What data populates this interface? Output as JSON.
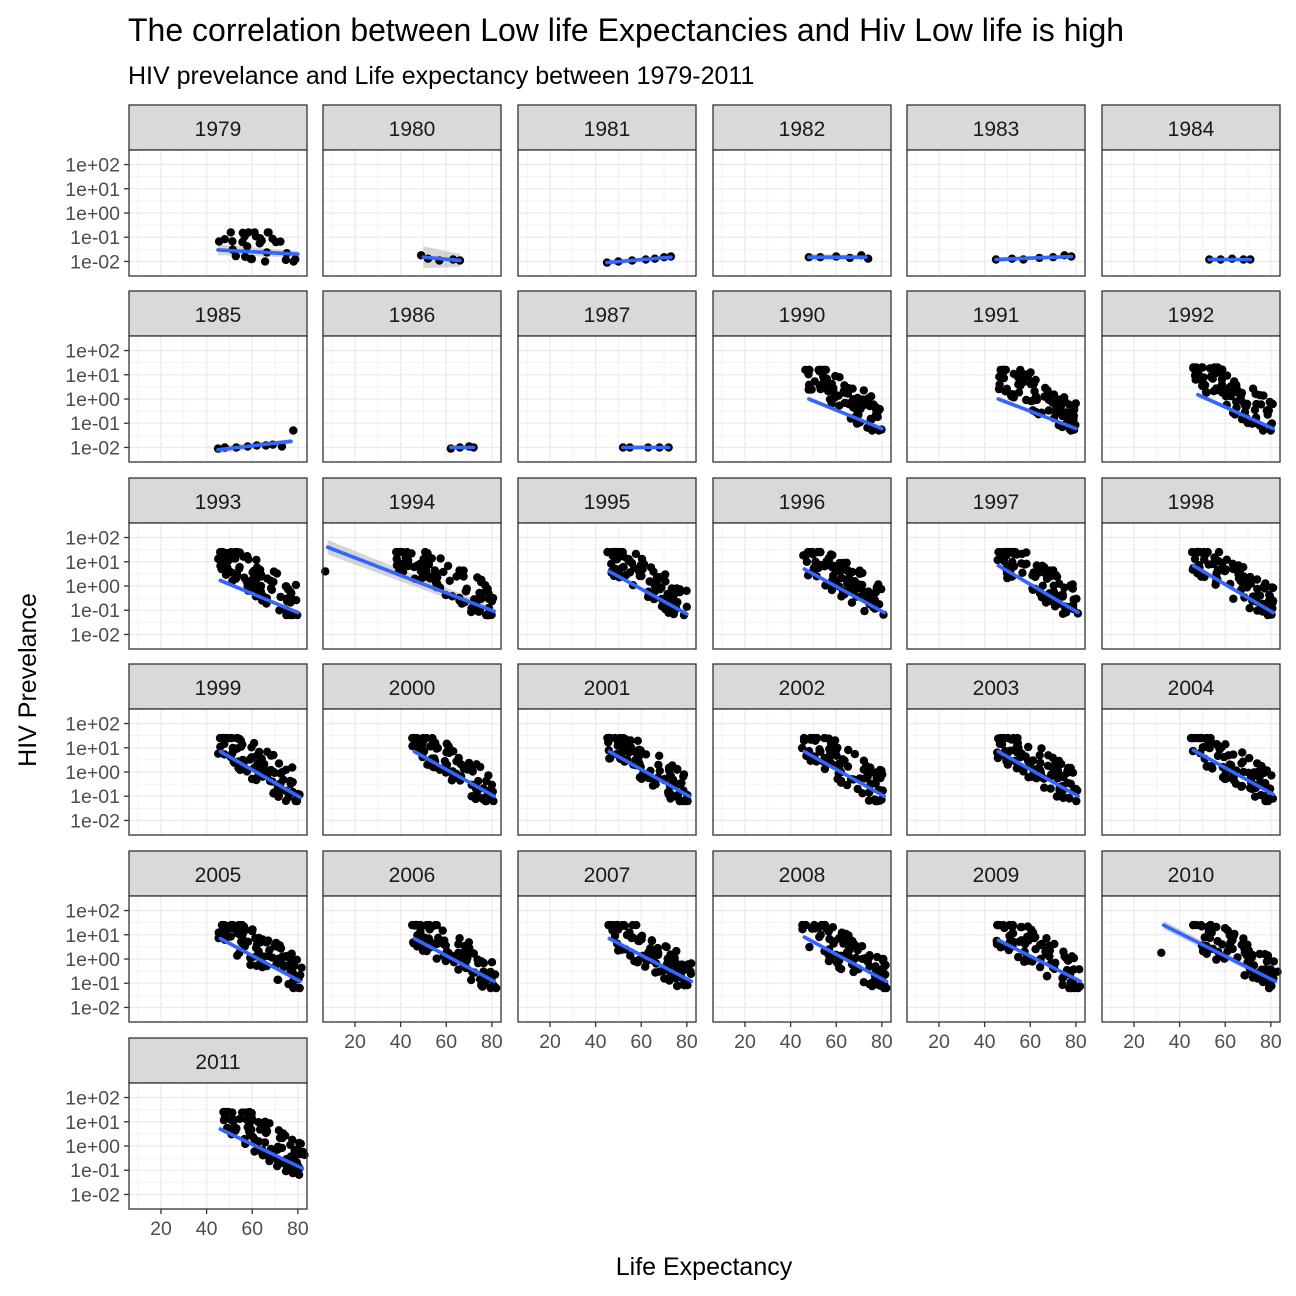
{
  "chart_data": {
    "type": "scatter",
    "title": "The correlation between Low life Expectancies and Hiv Low life is high",
    "subtitle": "HIV prevelance and Life expectancy between 1979-2011",
    "xlabel": "Life Expectancy",
    "ylabel": "HIV Prevelance",
    "xlim": [
      6,
      84
    ],
    "ylim_log10": [
      -2.6,
      2.6
    ],
    "y_scale": "log10",
    "x_ticks": [
      20,
      40,
      60,
      80
    ],
    "y_ticks": [
      0.01,
      0.1,
      1,
      10,
      100
    ],
    "y_tick_labels": [
      "1e-02",
      "1e-01",
      "1e+00",
      "1e+01",
      "1e+02"
    ],
    "grid": true,
    "point_color": "#000000",
    "fit_color": "#3366ff",
    "ribbon_color": "#999999",
    "strip_fill": "#d9d9d9",
    "panels": [
      {
        "year": "1979",
        "fit": [
          [
            45,
            0.03
          ],
          [
            80,
            0.02
          ]
        ],
        "ribbon": 0.22,
        "cloud": [
          45,
          80,
          -2,
          -0.8,
          30
        ]
      },
      {
        "year": "1980",
        "fit": [
          [
            50,
            0.015
          ],
          [
            66,
            0.011
          ]
        ],
        "ribbon": 0.45,
        "points": [
          [
            49,
            0.018
          ],
          [
            52,
            0.013
          ],
          [
            57,
            0.011
          ],
          [
            63,
            0.012
          ],
          [
            66,
            0.011
          ]
        ]
      },
      {
        "year": "1981",
        "fit": [
          [
            45,
            0.009
          ],
          [
            73,
            0.015
          ]
        ],
        "ribbon": 0.12,
        "points": [
          [
            45,
            0.009
          ],
          [
            50,
            0.01
          ],
          [
            56,
            0.011
          ],
          [
            62,
            0.012
          ],
          [
            66,
            0.013
          ],
          [
            70,
            0.015
          ],
          [
            73,
            0.016
          ]
        ]
      },
      {
        "year": "1982",
        "fit": [
          [
            48,
            0.015
          ],
          [
            73,
            0.015
          ]
        ],
        "ribbon": 0.14,
        "points": [
          [
            48,
            0.015
          ],
          [
            53,
            0.015
          ],
          [
            60,
            0.016
          ],
          [
            66,
            0.014
          ],
          [
            71,
            0.018
          ],
          [
            74,
            0.013
          ]
        ]
      },
      {
        "year": "1983",
        "fit": [
          [
            45,
            0.012
          ],
          [
            78,
            0.016
          ]
        ],
        "ribbon": 0.1,
        "points": [
          [
            45,
            0.012
          ],
          [
            52,
            0.013
          ],
          [
            57,
            0.012
          ],
          [
            64,
            0.014
          ],
          [
            70,
            0.015
          ],
          [
            75,
            0.018
          ],
          [
            78,
            0.016
          ]
        ]
      },
      {
        "year": "1984",
        "fit": [
          [
            53,
            0.012
          ],
          [
            71,
            0.012
          ]
        ],
        "ribbon": 0.1,
        "points": [
          [
            53,
            0.012
          ],
          [
            58,
            0.012
          ],
          [
            63,
            0.013
          ],
          [
            68,
            0.012
          ],
          [
            71,
            0.012
          ]
        ]
      },
      {
        "year": "1985",
        "fit": [
          [
            45,
            0.008
          ],
          [
            77,
            0.018
          ]
        ],
        "ribbon": 0.15,
        "points": [
          [
            45,
            0.009
          ],
          [
            48,
            0.01
          ],
          [
            53,
            0.01
          ],
          [
            58,
            0.011
          ],
          [
            62,
            0.012
          ],
          [
            66,
            0.012
          ],
          [
            69,
            0.013
          ],
          [
            73,
            0.011
          ],
          [
            78,
            0.05
          ]
        ]
      },
      {
        "year": "1986",
        "fit": [
          [
            62,
            0.01
          ],
          [
            72,
            0.01
          ]
        ],
        "ribbon": 0.1,
        "points": [
          [
            62,
            0.009
          ],
          [
            66,
            0.01
          ],
          [
            70,
            0.011
          ],
          [
            72,
            0.01
          ]
        ]
      },
      {
        "year": "1987",
        "fit": [
          [
            52,
            0.01
          ],
          [
            72,
            0.01
          ]
        ],
        "ribbon": 0.1,
        "points": [
          [
            52,
            0.01
          ],
          [
            55,
            0.01
          ],
          [
            63,
            0.01
          ],
          [
            68,
            0.01
          ],
          [
            72,
            0.01
          ]
        ]
      },
      {
        "year": "1990",
        "fit": [
          [
            48,
            1
          ],
          [
            80,
            0.06
          ]
        ],
        "ribbon": 0.1,
        "cloud": [
          46,
          80,
          -1.3,
          1.2,
          90
        ]
      },
      {
        "year": "1991",
        "fit": [
          [
            46,
            1
          ],
          [
            80,
            0.06
          ]
        ],
        "ribbon": 0.1,
        "cloud": [
          46,
          80,
          -1.3,
          1.2,
          90
        ]
      },
      {
        "year": "1992",
        "fit": [
          [
            48,
            1.5
          ],
          [
            81,
            0.06
          ]
        ],
        "ribbon": 0.1,
        "cloud": [
          46,
          81,
          -1.3,
          1.3,
          90
        ]
      },
      {
        "year": "1993",
        "fit": [
          [
            46,
            1.7
          ],
          [
            80,
            0.08
          ]
        ],
        "ribbon": 0.1,
        "cloud": [
          45,
          80,
          -1.2,
          1.4,
          90
        ]
      },
      {
        "year": "1994",
        "fit": [
          [
            8,
            40
          ],
          [
            81,
            0.09
          ]
        ],
        "ribbon": 0.3,
        "cloud": [
          38,
          81,
          -1.2,
          1.4,
          95
        ],
        "points": [
          [
            7,
            4
          ]
        ]
      },
      {
        "year": "1995",
        "fit": [
          [
            46,
            4
          ],
          [
            80,
            0.07
          ]
        ],
        "ribbon": 0.1,
        "cloud": [
          45,
          80,
          -1.2,
          1.4,
          90
        ]
      },
      {
        "year": "1996",
        "fit": [
          [
            46,
            5
          ],
          [
            81,
            0.08
          ]
        ],
        "ribbon": 0.1,
        "cloud": [
          45,
          81,
          -1.2,
          1.4,
          90
        ]
      },
      {
        "year": "1997",
        "fit": [
          [
            46,
            7
          ],
          [
            81,
            0.08
          ]
        ],
        "ribbon": 0.1,
        "cloud": [
          45,
          81,
          -1.2,
          1.4,
          90
        ]
      },
      {
        "year": "1998",
        "fit": [
          [
            46,
            7
          ],
          [
            81,
            0.08
          ]
        ],
        "ribbon": 0.1,
        "cloud": [
          45,
          81,
          -1.2,
          1.4,
          90
        ]
      },
      {
        "year": "1999",
        "fit": [
          [
            46,
            7
          ],
          [
            81,
            0.09
          ]
        ],
        "ribbon": 0.1,
        "cloud": [
          45,
          81,
          -1.2,
          1.4,
          90
        ]
      },
      {
        "year": "2000",
        "fit": [
          [
            46,
            7
          ],
          [
            81,
            0.1
          ]
        ],
        "ribbon": 0.1,
        "cloud": [
          45,
          81,
          -1.2,
          1.4,
          90
        ]
      },
      {
        "year": "2001",
        "fit": [
          [
            46,
            7
          ],
          [
            81,
            0.1
          ]
        ],
        "ribbon": 0.1,
        "cloud": [
          45,
          81,
          -1.2,
          1.4,
          90
        ]
      },
      {
        "year": "2002",
        "fit": [
          [
            46,
            7
          ],
          [
            81,
            0.1
          ]
        ],
        "ribbon": 0.1,
        "cloud": [
          45,
          81,
          -1.2,
          1.4,
          90
        ]
      },
      {
        "year": "2003",
        "fit": [
          [
            46,
            7
          ],
          [
            81,
            0.1
          ]
        ],
        "ribbon": 0.1,
        "cloud": [
          45,
          81,
          -1.2,
          1.4,
          90
        ]
      },
      {
        "year": "2004",
        "fit": [
          [
            46,
            8
          ],
          [
            81,
            0.12
          ]
        ],
        "ribbon": 0.1,
        "cloud": [
          45,
          81,
          -1.2,
          1.4,
          90
        ]
      },
      {
        "year": "2005",
        "fit": [
          [
            46,
            7
          ],
          [
            81,
            0.12
          ]
        ],
        "ribbon": 0.1,
        "cloud": [
          45,
          82,
          -1.2,
          1.4,
          90
        ]
      },
      {
        "year": "2006",
        "fit": [
          [
            46,
            7
          ],
          [
            81,
            0.12
          ]
        ],
        "ribbon": 0.1,
        "cloud": [
          45,
          82,
          -1.2,
          1.4,
          90
        ]
      },
      {
        "year": "2007",
        "fit": [
          [
            46,
            7
          ],
          [
            82,
            0.12
          ]
        ],
        "ribbon": 0.1,
        "cloud": [
          45,
          82,
          -1.2,
          1.4,
          90
        ]
      },
      {
        "year": "2008",
        "fit": [
          [
            46,
            8
          ],
          [
            82,
            0.12
          ]
        ],
        "ribbon": 0.1,
        "cloud": [
          45,
          82,
          -1.2,
          1.4,
          90
        ]
      },
      {
        "year": "2009",
        "fit": [
          [
            46,
            6
          ],
          [
            82,
            0.12
          ]
        ],
        "ribbon": 0.1,
        "cloud": [
          45,
          82,
          -1.2,
          1.4,
          90
        ]
      },
      {
        "year": "2010",
        "fit": [
          [
            33,
            25
          ],
          [
            82,
            0.12
          ]
        ],
        "ribbon": 0.18,
        "cloud": [
          45,
          83,
          -1.2,
          1.4,
          90
        ],
        "points": [
          [
            32,
            1.8
          ]
        ]
      },
      {
        "year": "2011",
        "fit": [
          [
            46,
            5
          ],
          [
            82,
            0.12
          ]
        ],
        "ribbon": 0.1,
        "cloud": [
          47,
          83,
          -1.2,
          1.4,
          95
        ]
      }
    ]
  }
}
